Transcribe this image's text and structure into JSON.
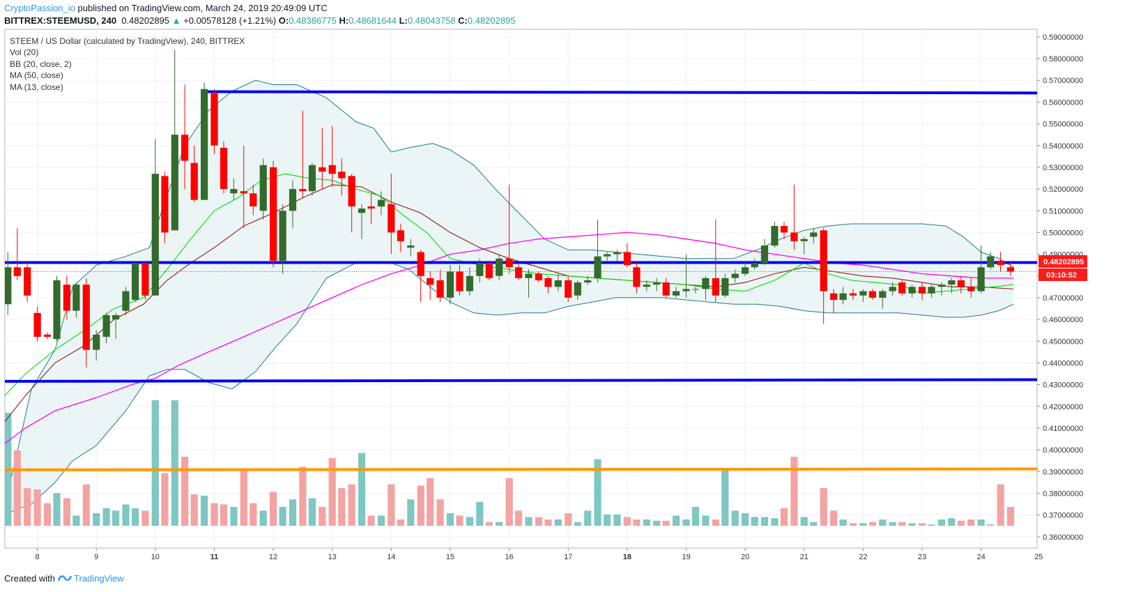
{
  "header": {
    "author": "CryptoPassion_io",
    "published_text": "published on TradingView.com, March 24, 2019 20:49:09 UTC",
    "symbol": "BITTREX:STEEMUSD, 240",
    "price": "0.48202895",
    "change_arrow": "▲",
    "change": "+0.00578128 (+1.21%)",
    "o_label": "O:",
    "o_value": "0.48386775",
    "h_label": "H:",
    "h_value": "0.48681644",
    "l_label": "L:",
    "l_value": "0.48043758",
    "c_label": "C:",
    "c_value": "0.48202895"
  },
  "footer": {
    "created_with": "Created with",
    "brand": "TradingView"
  },
  "colors": {
    "up": "#26a69a",
    "up_body": "#336b2d",
    "down": "#ff0000",
    "bb": "#1c7a8a",
    "bb_fill": "#e8f3f3",
    "ma50": "#ff00ff",
    "ma20": "#8b1a1a",
    "ma13": "#00dd00",
    "hline_blue": "#0000ee",
    "hline_orange": "#ff9800"
  },
  "chart_data": {
    "type": "candlestick",
    "title": "STEEM / US Dollar (calculated by TradingView), 240, BITTREX",
    "legend": [
      "Vol (20)",
      "BB (20, close, 2)",
      "MA (50, close)",
      "MA (13, close)"
    ],
    "x_ticks": [
      "8",
      "9",
      "10",
      "11",
      "12",
      "13",
      "14",
      "15",
      "16",
      "17",
      "18",
      "19",
      "20",
      "21",
      "22",
      "23",
      "24",
      "25"
    ],
    "y_ticks": [
      "0.59000000",
      "0.58000000",
      "0.57000000",
      "0.56000000",
      "0.55000000",
      "0.54000000",
      "0.53000000",
      "0.52000000",
      "0.51000000",
      "0.50000000",
      "0.49000000",
      "0.48000000",
      "0.47000000",
      "0.46000000",
      "0.45000000",
      "0.44000000",
      "0.43000000",
      "0.42000000",
      "0.41000000",
      "0.40000000",
      "0.39000000",
      "0.38000000",
      "0.37000000",
      "0.36000000"
    ],
    "ylim": [
      0.3548,
      0.5935
    ],
    "x_range": [
      7.45,
      24.95
    ],
    "last_price_label": "0.48202895",
    "countdown": "03:10:52",
    "horizontal_lines": [
      {
        "name": "resistance-top",
        "y1": 0.5648,
        "y2": 0.5642,
        "x1": 10.8,
        "x2": 24.95,
        "color": "#0000ee"
      },
      {
        "name": "middle-level",
        "y1": 0.4862,
        "y2": 0.4862,
        "x1": 7.45,
        "x2": 24.95,
        "color": "#0000ee"
      },
      {
        "name": "support-low",
        "y1": 0.4315,
        "y2": 0.4323,
        "x1": 7.45,
        "x2": 24.95,
        "color": "#0000ee"
      },
      {
        "name": "support-orange",
        "y1": 0.3908,
        "y2": 0.3912,
        "x1": 7.45,
        "x2": 24.95,
        "color": "#ff9800"
      }
    ],
    "candles": [
      [
        7.5,
        0.467,
        0.484,
        0.462,
        0.491
      ],
      [
        7.83,
        0.484,
        0.481,
        0.478,
        0.502
      ],
      [
        7.83,
        0.484,
        0.481,
        0.478,
        0.502
      ],
      [
        7.83,
        0.484,
        0.481,
        0.478,
        0.502
      ],
      [
        7.83,
        0.484,
        0.481,
        0.478,
        0.502
      ],
      [
        7.83,
        0.484,
        0.481,
        0.478,
        0.502
      ]
    ],
    "volume_ylim": [
      0,
      0.2
    ]
  }
}
